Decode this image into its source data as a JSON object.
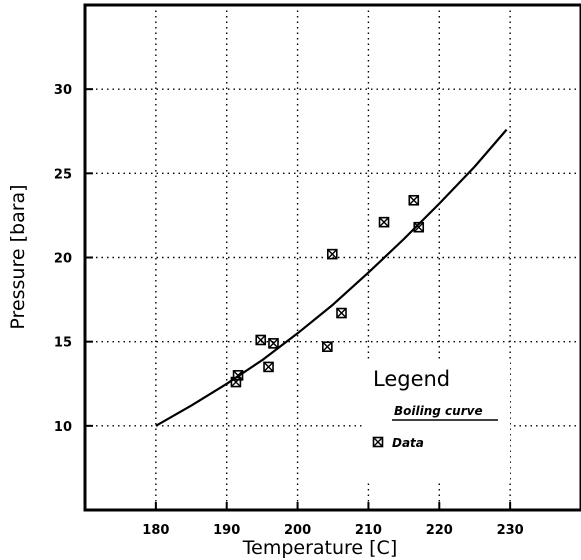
{
  "chart_data": {
    "type": "scatter",
    "title": "",
    "xlabel": "Temperature [C]",
    "ylabel": "Pressure [bara]",
    "xlim": [
      170,
      240
    ],
    "ylim": [
      5,
      35
    ],
    "x_ticks": [
      180,
      190,
      200,
      210,
      220,
      230
    ],
    "y_ticks": [
      10,
      15,
      20,
      25,
      30
    ],
    "grid": true,
    "legend": {
      "title": "Legend",
      "placement": "bottom-right",
      "entries": [
        "Boiling curve",
        "Data"
      ]
    },
    "series": [
      {
        "name": "Boiling curve",
        "style": "line",
        "x": [
          180,
          185,
          190,
          195,
          200,
          205,
          210,
          215,
          220,
          225,
          229.5
        ],
        "y": [
          10.0,
          11.2,
          12.5,
          13.9,
          15.5,
          17.2,
          19.1,
          21.1,
          23.2,
          25.4,
          27.6
        ]
      },
      {
        "name": "Data",
        "style": "marker",
        "x": [
          191.3,
          191.6,
          194.8,
          195.9,
          196.6,
          204.2,
          204.9,
          206.2,
          212.2,
          216.4,
          217.1
        ],
        "y": [
          12.6,
          13.0,
          15.1,
          13.5,
          14.9,
          14.7,
          20.2,
          16.7,
          22.1,
          23.4,
          21.8
        ]
      }
    ]
  }
}
